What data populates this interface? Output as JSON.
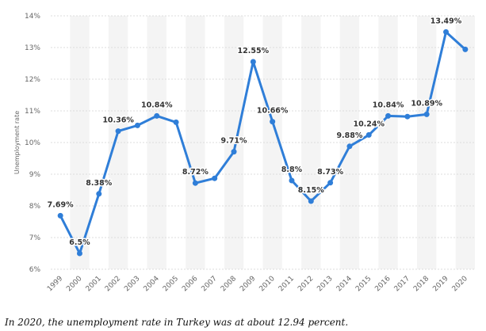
{
  "caption": "In 2020, the unemployment rate in Turkey was at about 12.94 percent.",
  "colors": {
    "line": "#2f7ed8",
    "band": "#f4f4f4",
    "grid": "#dddddd"
  },
  "chart_data": {
    "type": "line",
    "title": "",
    "xlabel": "",
    "ylabel": "Unemployment rate",
    "ylim": [
      6,
      14
    ],
    "yticks": [
      6,
      7,
      8,
      9,
      10,
      11,
      12,
      13,
      14
    ],
    "ytick_suffix": "%",
    "grid": true,
    "categories": [
      "1999",
      "2000",
      "2001",
      "2002",
      "2003",
      "2004",
      "2005",
      "2006",
      "2007",
      "2008",
      "2009",
      "2010",
      "2011",
      "2012",
      "2013",
      "2014",
      "2015",
      "2016",
      "2017",
      "2018",
      "2019",
      "2020"
    ],
    "series": [
      {
        "values": [
          7.69,
          6.5,
          8.38,
          10.36,
          10.54,
          10.84,
          10.64,
          8.72,
          8.87,
          9.71,
          12.55,
          10.66,
          8.8,
          8.15,
          8.73,
          9.88,
          10.24,
          10.84,
          10.82,
          10.89,
          13.49,
          12.94
        ],
        "labels": [
          "7.69%",
          "6.5%",
          "8.38%",
          "10.36%",
          "",
          "10.84%",
          "",
          "8.72%",
          "",
          "9.71%",
          "12.55%",
          "10.66%",
          "8.8%",
          "8.15%",
          "8.73%",
          "9.88%",
          "10.24%",
          "10.84%",
          "",
          "10.89%",
          "13.49%",
          ""
        ]
      }
    ]
  }
}
